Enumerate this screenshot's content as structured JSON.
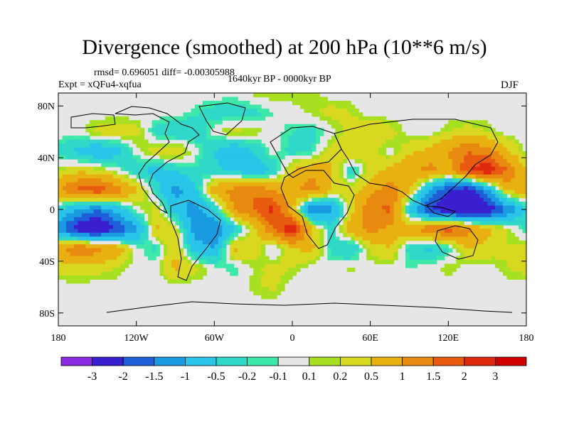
{
  "chart_data": {
    "type": "heatmap",
    "title": "Divergence (smoothed) at 200 hPa (10**6 m/s)",
    "stats": "rmsd= 0.696051 diff= -0.00305988",
    "experiment": "Expt = xQFu4-xqfua",
    "period": "1640kyr BP - 0000kyr BP",
    "season": "DJF",
    "xlim": [
      -180,
      180
    ],
    "ylim": [
      -90,
      90
    ],
    "x_ticks": [
      {
        "value": -180,
        "label": "180"
      },
      {
        "value": -120,
        "label": "120W"
      },
      {
        "value": -60,
        "label": "60W"
      },
      {
        "value": 0,
        "label": "0"
      },
      {
        "value": 60,
        "label": "60E"
      },
      {
        "value": 120,
        "label": "120E"
      },
      {
        "value": 180,
        "label": "180"
      }
    ],
    "y_ticks": [
      {
        "value": 80,
        "label": "80N"
      },
      {
        "value": 40,
        "label": "40N"
      },
      {
        "value": 0,
        "label": "0"
      },
      {
        "value": -40,
        "label": "40S"
      },
      {
        "value": -80,
        "label": "80S"
      }
    ],
    "colorbar": {
      "levels": [
        "-3",
        "-2",
        "-1.5",
        "-1",
        "-0.5",
        "-0.2",
        "-0.1",
        "0.1",
        "0.2",
        "0.5",
        "1",
        "1.5",
        "2",
        "3"
      ],
      "colors": [
        "#8a2be2",
        "#3a1fd0",
        "#1e5fd8",
        "#1a9ae0",
        "#29c5e8",
        "#2fd8c8",
        "#3ee8a8",
        "#e6e6e6",
        "#a6e020",
        "#d8d820",
        "#e8b010",
        "#e88a10",
        "#e85a10",
        "#e02a10",
        "#d00000"
      ]
    },
    "grid_lon": [
      -180,
      -165,
      -150,
      -135,
      -120,
      -105,
      -90,
      -75,
      -60,
      -45,
      -30,
      -15,
      0,
      15,
      30,
      45,
      60,
      75,
      90,
      105,
      120,
      135,
      150,
      165,
      180
    ],
    "grid_lat": [
      90,
      75,
      60,
      45,
      30,
      15,
      0,
      -15,
      -30,
      -45,
      -60,
      -75,
      -90
    ],
    "values": [
      [
        0,
        0,
        0,
        0,
        0,
        0,
        0,
        0,
        0,
        0,
        0.15,
        0.2,
        0.2,
        0.15,
        0,
        0,
        0,
        0,
        0,
        0,
        0,
        0,
        0,
        0,
        0
      ],
      [
        0,
        0,
        0,
        0,
        0,
        0,
        0,
        -0.15,
        -0.3,
        -0.4,
        -0.3,
        -0.1,
        0,
        0.15,
        0.3,
        0.2,
        0,
        0,
        0,
        0,
        0,
        0,
        0,
        0,
        0
      ],
      [
        0,
        0,
        0.3,
        0.4,
        0.3,
        -0.3,
        -0.5,
        -0.4,
        0,
        0.3,
        0.2,
        0,
        -0.2,
        -0.3,
        0,
        0.3,
        0.5,
        0.3,
        0,
        0,
        0.2,
        0.3,
        0.2,
        0,
        0
      ],
      [
        -0.3,
        -0.6,
        -0.9,
        -0.7,
        0,
        0.4,
        0.5,
        0,
        -0.5,
        -0.9,
        -0.5,
        0,
        -0.3,
        -0.2,
        0.3,
        0.5,
        0.3,
        0,
        0.4,
        0.6,
        1,
        1.5,
        1.2,
        0.6,
        0
      ],
      [
        0.2,
        0.4,
        0.3,
        0,
        -0.4,
        -0.7,
        -0.5,
        -0.2,
        -0.4,
        -0.6,
        -0.9,
        -0.5,
        0.5,
        0.8,
        0.6,
        -0.4,
        0.3,
        0.6,
        0.9,
        1.2,
        0.8,
        2,
        2.5,
        1.5,
        0.5
      ],
      [
        1,
        1.6,
        1.9,
        1.3,
        0.6,
        -0.3,
        -1.2,
        -0.6,
        0.8,
        1.2,
        1.5,
        0.9,
        0.8,
        1.3,
        0.5,
        0.3,
        0.8,
        1.3,
        0.6,
        -1,
        -2,
        -2.5,
        -1.2,
        0.6,
        0.8
      ],
      [
        -0.5,
        -1,
        -1.5,
        -0.8,
        0,
        0.3,
        -0.7,
        -1.3,
        -0.5,
        1,
        1.5,
        2.2,
        0.6,
        -1.5,
        -1.2,
        0.3,
        1.4,
        1.6,
        -0.6,
        -2,
        -2.6,
        -3,
        -2.5,
        -1.5,
        -0.5
      ],
      [
        -1.2,
        -2.5,
        -2.8,
        -2,
        -1.2,
        0.6,
        0.3,
        -1.2,
        -1.5,
        -0.6,
        0.3,
        1.5,
        2.5,
        0.5,
        -0.3,
        0.8,
        1.2,
        0.9,
        0.8,
        1.4,
        1.8,
        1.2,
        0.6,
        0.2,
        -0.2
      ],
      [
        0.8,
        1.5,
        1.2,
        0.8,
        0,
        -0.3,
        0.5,
        -0.8,
        -1,
        0.6,
        0.4,
        -0.2,
        0.5,
        0.6,
        -0.3,
        -0.6,
        0.3,
        0.5,
        -0.3,
        -0.6,
        -0.3,
        0.5,
        0.4,
        0.2,
        0.3
      ],
      [
        0.3,
        0.4,
        0.3,
        0.2,
        0,
        0,
        0.6,
        0.3,
        0,
        -0.2,
        0.1,
        0.3,
        0.2,
        0,
        0,
        0.15,
        0,
        0,
        -0.1,
        0,
        0.2,
        0,
        0,
        0.2,
        0.3
      ],
      [
        0,
        0,
        0,
        0,
        0,
        0,
        0,
        0,
        0,
        0,
        0.15,
        0.25,
        0,
        0,
        0,
        0,
        0,
        0,
        0,
        0,
        0,
        0,
        0,
        0,
        0
      ],
      [
        0,
        0,
        0,
        0,
        0,
        0,
        0,
        0,
        0,
        0,
        0,
        0,
        0,
        0,
        0,
        0,
        0,
        0,
        0,
        0,
        0,
        0,
        0,
        0,
        0
      ],
      [
        0,
        0,
        0,
        0,
        0,
        0,
        0,
        0,
        0,
        0,
        0,
        0,
        0,
        0,
        0,
        0,
        0,
        0,
        0,
        0,
        0,
        0,
        0,
        0,
        0
      ]
    ]
  }
}
